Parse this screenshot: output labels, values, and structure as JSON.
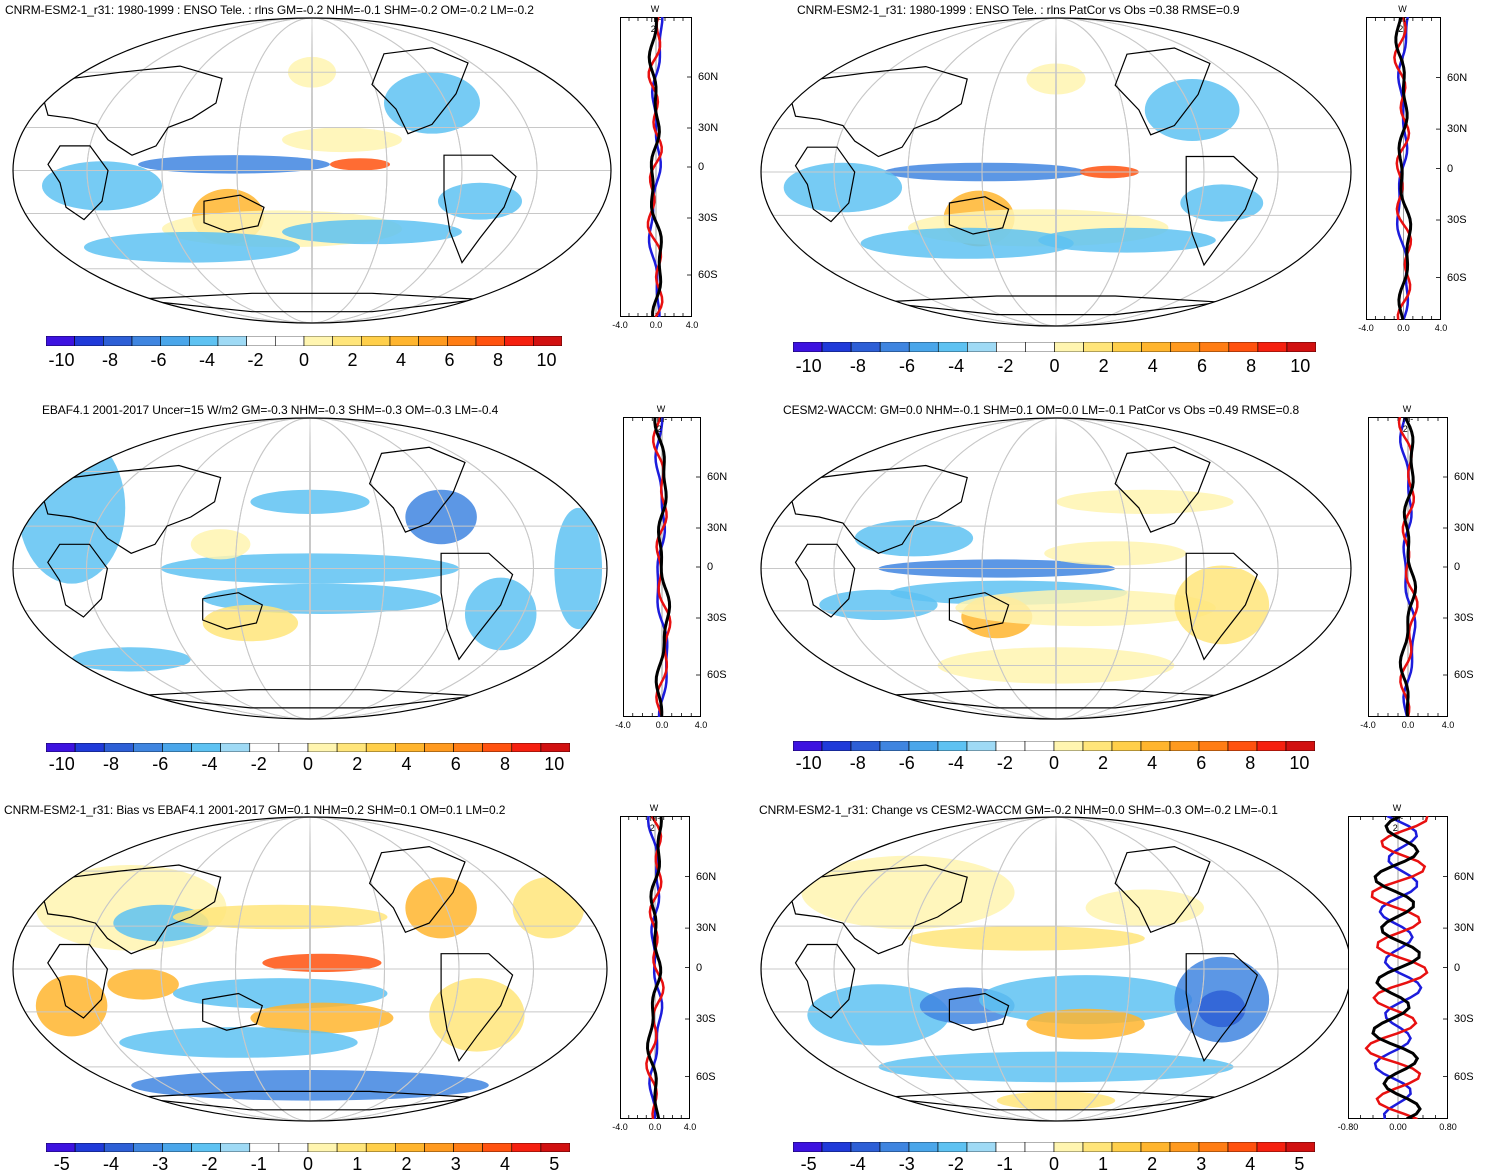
{
  "colorbar_colors": [
    "#3d12e0",
    "#1f3ad9",
    "#2d5fd6",
    "#3f85e0",
    "#4aa6ea",
    "#5ec2f2",
    "#9fdaf5",
    "#ffffff",
    "#ffffff",
    "#fff5b0",
    "#ffe57a",
    "#ffcf4a",
    "#ffb52e",
    "#ff9a1f",
    "#ff7d14",
    "#ff520f",
    "#f5200f",
    "#d11010"
  ],
  "profile_unit": "W m-2",
  "lat_labels": [
    "60N",
    "30N",
    "0",
    "30S",
    "60S"
  ],
  "panels": [
    {
      "title": "CNRM-ESM2-1_r31: 1980-1999 : ENSO Tele. : rlns GM=-0.2 NHM=-0.1 SHM=-0.2 OM=-0.2 LM=-0.2",
      "colorbar_labels": [
        "-10",
        "-8",
        "-6",
        "-4",
        "-2",
        "0",
        "2",
        "4",
        "6",
        "8",
        "10"
      ],
      "profile_xlabels": [
        "-4.0",
        "0.0",
        "4.0"
      ],
      "chart_data": {
        "type": "map_with_zonal_profile",
        "variable": "rlns",
        "gm": -0.2,
        "nhm": -0.1,
        "shm": -0.2,
        "om": -0.2,
        "lm": -0.2,
        "colorbar_range": [
          -10,
          10
        ],
        "profile_xlim": [
          -4.0,
          4.0
        ]
      }
    },
    {
      "title": "CNRM-ESM2-1_r31: 1980-1999 : ENSO Tele. : rlns PatCor vs Obs =0.38 RMSE=0.9",
      "colorbar_labels": [
        "-10",
        "-8",
        "-6",
        "-4",
        "-2",
        "0",
        "2",
        "4",
        "6",
        "8",
        "10"
      ],
      "profile_xlabels": [
        "-4.0",
        "0.0",
        "4.0"
      ],
      "chart_data": {
        "type": "map_with_zonal_profile",
        "variable": "rlns",
        "patcor": 0.38,
        "rmse": 0.9,
        "colorbar_range": [
          -10,
          10
        ],
        "profile_xlim": [
          -4.0,
          4.0
        ]
      }
    },
    {
      "title": "EBAF4.1 2001-2017 Uncer=15 W/m2 GM=-0.3 NHM=-0.3 SHM=-0.3 OM=-0.3 LM=-0.4",
      "colorbar_labels": [
        "-10",
        "-8",
        "-6",
        "-4",
        "-2",
        "0",
        "2",
        "4",
        "6",
        "8",
        "10"
      ],
      "profile_xlabels": [
        "-4.0",
        "0.0",
        "4.0"
      ],
      "chart_data": {
        "type": "map_with_zonal_profile",
        "dataset": "EBAF4.1",
        "gm": -0.3,
        "nhm": -0.3,
        "shm": -0.3,
        "om": -0.3,
        "lm": -0.4,
        "colorbar_range": [
          -10,
          10
        ],
        "profile_xlim": [
          -4.0,
          4.0
        ]
      }
    },
    {
      "title": "CESM2-WACCM: GM=0.0 NHM=-0.1 SHM=0.1 OM=0.0 LM=-0.1 PatCor vs Obs =0.49 RMSE=0.8",
      "colorbar_labels": [
        "-10",
        "-8",
        "-6",
        "-4",
        "-2",
        "0",
        "2",
        "4",
        "6",
        "8",
        "10"
      ],
      "profile_xlabels": [
        "-4.0",
        "0.0",
        "4.0"
      ],
      "chart_data": {
        "type": "map_with_zonal_profile",
        "dataset": "CESM2-WACCM",
        "gm": 0.0,
        "nhm": -0.1,
        "shm": 0.1,
        "om": 0.0,
        "lm": -0.1,
        "patcor": 0.49,
        "rmse": 0.8,
        "colorbar_range": [
          -10,
          10
        ],
        "profile_xlim": [
          -4.0,
          4.0
        ]
      }
    },
    {
      "title": "CNRM-ESM2-1_r31: Bias vs EBAF4.1 2001-2017 GM=0.1 NHM=0.2 SHM=0.1 OM=0.1 LM=0.2",
      "colorbar_labels": [
        "-5",
        "-4",
        "-3",
        "-2",
        "-1",
        "0",
        "1",
        "2",
        "3",
        "4",
        "5"
      ],
      "profile_xlabels": [
        "-4.0",
        "0.0",
        "4.0"
      ],
      "chart_data": {
        "type": "map_with_zonal_profile",
        "gm": 0.1,
        "nhm": 0.2,
        "shm": 0.1,
        "om": 0.1,
        "lm": 0.2,
        "colorbar_range": [
          -5,
          5
        ],
        "profile_xlim": [
          -4.0,
          4.0
        ]
      }
    },
    {
      "title": "CNRM-ESM2-1_r31: Change vs CESM2-WACCM GM=-0.2 NHM=0.0 SHM=-0.3 OM=-0.2 LM=-0.1",
      "colorbar_labels": [
        "-5",
        "-4",
        "-3",
        "-2",
        "-1",
        "0",
        "1",
        "2",
        "3",
        "4",
        "5"
      ],
      "profile_xlabels": [
        "-0.80",
        "0.00",
        "0.80"
      ],
      "chart_data": {
        "type": "map_with_zonal_profile",
        "gm": -0.2,
        "nhm": 0.0,
        "shm": -0.3,
        "om": -0.2,
        "lm": -0.1,
        "colorbar_range": [
          -5,
          5
        ],
        "profile_xlim": [
          -0.8,
          0.8
        ]
      }
    }
  ]
}
